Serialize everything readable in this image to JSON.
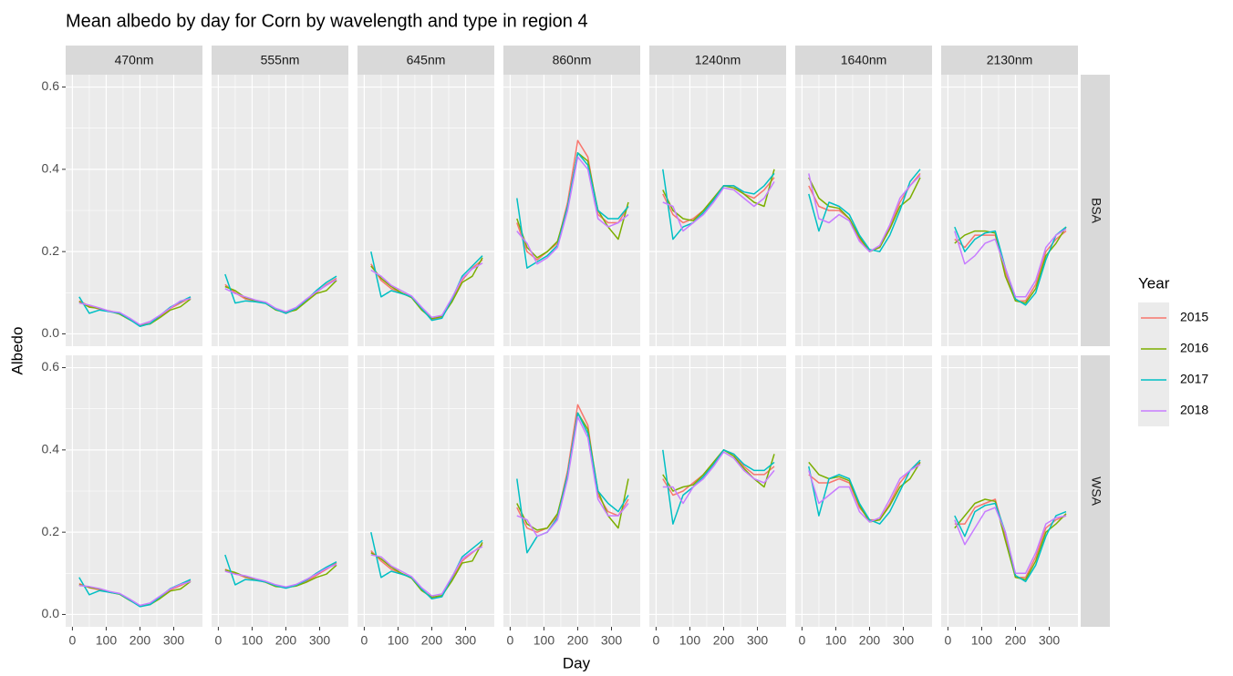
{
  "chart_data": {
    "type": "line",
    "title": "Mean albedo by day for Corn by wavelength and type in region 4",
    "x_label": "Day",
    "y_label": "Albedo",
    "columns": [
      "470nm",
      "555nm",
      "645nm",
      "860nm",
      "1240nm",
      "1640nm",
      "2130nm"
    ],
    "rows": [
      "BSA",
      "WSA"
    ],
    "legend_title": "Year",
    "legend_position": "right",
    "grid": true,
    "series": [
      {
        "name": "2015",
        "color": "#F8766D"
      },
      {
        "name": "2016",
        "color": "#7CAE00"
      },
      {
        "name": "2017",
        "color": "#00BFC4"
      },
      {
        "name": "2018",
        "color": "#C77CFF"
      }
    ],
    "x": [
      20,
      50,
      80,
      110,
      140,
      170,
      200,
      230,
      260,
      290,
      320,
      350
    ],
    "xlim": [
      -20,
      385
    ],
    "xticks": [
      0,
      100,
      200,
      300
    ],
    "ylim": [
      -0.03,
      0.63
    ],
    "yticks": [
      {
        "value": 0,
        "label": "0.0"
      },
      0.2,
      0.4,
      0.6
    ],
    "panels": [
      [
        [
          [
            0.08,
            0.068,
            0.06,
            0.056,
            0.05,
            0.036,
            0.02,
            0.026,
            0.042,
            0.062,
            0.075,
            0.088
          ],
          [
            0.078,
            0.065,
            0.062,
            0.055,
            0.048,
            0.034,
            0.021,
            0.024,
            0.04,
            0.058,
            0.066,
            0.085
          ],
          [
            0.09,
            0.05,
            0.058,
            0.054,
            0.05,
            0.035,
            0.018,
            0.025,
            0.045,
            0.065,
            0.078,
            0.09
          ],
          [
            0.075,
            0.07,
            0.063,
            0.055,
            0.052,
            0.038,
            0.022,
            0.03,
            0.046,
            0.063,
            0.08,
            0.086
          ]
        ],
        [
          [
            0.12,
            0.1,
            0.085,
            0.08,
            0.075,
            0.06,
            0.05,
            0.06,
            0.08,
            0.1,
            0.12,
            0.135
          ],
          [
            0.115,
            0.105,
            0.088,
            0.08,
            0.074,
            0.058,
            0.052,
            0.058,
            0.078,
            0.098,
            0.105,
            0.13
          ],
          [
            0.145,
            0.075,
            0.08,
            0.078,
            0.074,
            0.06,
            0.05,
            0.062,
            0.082,
            0.105,
            0.125,
            0.14
          ],
          [
            0.11,
            0.098,
            0.09,
            0.082,
            0.077,
            0.062,
            0.054,
            0.064,
            0.084,
            0.102,
            0.118,
            0.132
          ]
        ],
        [
          [
            0.17,
            0.13,
            0.11,
            0.1,
            0.09,
            0.06,
            0.035,
            0.04,
            0.08,
            0.13,
            0.16,
            0.18
          ],
          [
            0.165,
            0.135,
            0.115,
            0.1,
            0.088,
            0.058,
            0.037,
            0.042,
            0.078,
            0.125,
            0.14,
            0.185
          ],
          [
            0.2,
            0.09,
            0.105,
            0.098,
            0.09,
            0.062,
            0.033,
            0.038,
            0.085,
            0.14,
            0.165,
            0.19
          ],
          [
            0.155,
            0.14,
            0.118,
            0.105,
            0.092,
            0.065,
            0.04,
            0.045,
            0.088,
            0.135,
            0.158,
            0.172
          ]
        ],
        [
          [
            0.27,
            0.2,
            0.18,
            0.2,
            0.22,
            0.32,
            0.47,
            0.43,
            0.29,
            0.27,
            0.27,
            0.31
          ],
          [
            0.28,
            0.21,
            0.185,
            0.2,
            0.225,
            0.31,
            0.44,
            0.42,
            0.3,
            0.26,
            0.23,
            0.32
          ],
          [
            0.33,
            0.16,
            0.175,
            0.19,
            0.215,
            0.31,
            0.44,
            0.41,
            0.3,
            0.28,
            0.28,
            0.31
          ],
          [
            0.25,
            0.22,
            0.17,
            0.185,
            0.21,
            0.3,
            0.43,
            0.4,
            0.28,
            0.26,
            0.27,
            0.29
          ]
        ],
        [
          [
            0.34,
            0.29,
            0.27,
            0.28,
            0.3,
            0.33,
            0.36,
            0.36,
            0.34,
            0.33,
            0.35,
            0.38
          ],
          [
            0.35,
            0.3,
            0.28,
            0.275,
            0.3,
            0.33,
            0.36,
            0.355,
            0.34,
            0.32,
            0.31,
            0.4
          ],
          [
            0.4,
            0.23,
            0.26,
            0.27,
            0.295,
            0.325,
            0.36,
            0.36,
            0.345,
            0.34,
            0.36,
            0.39
          ],
          [
            0.32,
            0.31,
            0.25,
            0.27,
            0.29,
            0.32,
            0.355,
            0.35,
            0.33,
            0.31,
            0.33,
            0.37
          ]
        ],
        [
          [
            0.36,
            0.31,
            0.3,
            0.3,
            0.28,
            0.23,
            0.2,
            0.21,
            0.26,
            0.32,
            0.36,
            0.39
          ],
          [
            0.38,
            0.33,
            0.31,
            0.305,
            0.28,
            0.235,
            0.2,
            0.21,
            0.255,
            0.31,
            0.33,
            0.38
          ],
          [
            0.34,
            0.25,
            0.32,
            0.31,
            0.29,
            0.24,
            0.205,
            0.2,
            0.24,
            0.3,
            0.37,
            0.4
          ],
          [
            0.39,
            0.28,
            0.27,
            0.29,
            0.275,
            0.225,
            0.2,
            0.215,
            0.265,
            0.33,
            0.36,
            0.385
          ]
        ],
        [
          [
            0.23,
            0.21,
            0.24,
            0.24,
            0.24,
            0.15,
            0.08,
            0.08,
            0.12,
            0.2,
            0.23,
            0.25
          ],
          [
            0.22,
            0.24,
            0.25,
            0.25,
            0.245,
            0.14,
            0.08,
            0.075,
            0.11,
            0.19,
            0.22,
            0.26
          ],
          [
            0.26,
            0.2,
            0.23,
            0.245,
            0.25,
            0.16,
            0.085,
            0.07,
            0.1,
            0.18,
            0.24,
            0.26
          ],
          [
            0.25,
            0.17,
            0.19,
            0.22,
            0.23,
            0.16,
            0.09,
            0.09,
            0.13,
            0.21,
            0.24,
            0.255
          ]
        ]
      ],
      [
        [
          [
            0.075,
            0.065,
            0.06,
            0.055,
            0.05,
            0.035,
            0.02,
            0.025,
            0.04,
            0.06,
            0.07,
            0.082
          ],
          [
            0.072,
            0.066,
            0.062,
            0.054,
            0.049,
            0.034,
            0.021,
            0.024,
            0.039,
            0.057,
            0.062,
            0.08
          ],
          [
            0.09,
            0.048,
            0.058,
            0.054,
            0.05,
            0.035,
            0.019,
            0.024,
            0.043,
            0.063,
            0.074,
            0.085
          ],
          [
            0.07,
            0.068,
            0.063,
            0.056,
            0.051,
            0.037,
            0.022,
            0.028,
            0.045,
            0.062,
            0.073,
            0.08
          ]
        ],
        [
          [
            0.11,
            0.1,
            0.09,
            0.085,
            0.08,
            0.07,
            0.065,
            0.07,
            0.08,
            0.095,
            0.11,
            0.125
          ],
          [
            0.108,
            0.102,
            0.092,
            0.085,
            0.078,
            0.068,
            0.066,
            0.069,
            0.078,
            0.09,
            0.098,
            0.12
          ],
          [
            0.145,
            0.072,
            0.085,
            0.083,
            0.079,
            0.07,
            0.064,
            0.071,
            0.083,
            0.1,
            0.115,
            0.128
          ],
          [
            0.105,
            0.098,
            0.094,
            0.087,
            0.081,
            0.072,
            0.067,
            0.073,
            0.085,
            0.098,
            0.112,
            0.122
          ]
        ],
        [
          [
            0.155,
            0.13,
            0.11,
            0.1,
            0.09,
            0.06,
            0.04,
            0.045,
            0.085,
            0.13,
            0.15,
            0.17
          ],
          [
            0.15,
            0.135,
            0.115,
            0.1,
            0.088,
            0.058,
            0.042,
            0.046,
            0.082,
            0.125,
            0.13,
            0.175
          ],
          [
            0.2,
            0.09,
            0.105,
            0.098,
            0.09,
            0.062,
            0.038,
            0.043,
            0.09,
            0.14,
            0.16,
            0.18
          ],
          [
            0.145,
            0.14,
            0.118,
            0.105,
            0.092,
            0.065,
            0.045,
            0.05,
            0.092,
            0.135,
            0.152,
            0.165
          ]
        ],
        [
          [
            0.26,
            0.21,
            0.2,
            0.21,
            0.24,
            0.35,
            0.51,
            0.46,
            0.29,
            0.25,
            0.24,
            0.28
          ],
          [
            0.27,
            0.22,
            0.205,
            0.21,
            0.245,
            0.34,
            0.49,
            0.45,
            0.3,
            0.24,
            0.21,
            0.33
          ],
          [
            0.33,
            0.15,
            0.19,
            0.2,
            0.235,
            0.34,
            0.49,
            0.44,
            0.3,
            0.27,
            0.25,
            0.29
          ],
          [
            0.24,
            0.23,
            0.19,
            0.2,
            0.23,
            0.33,
            0.48,
            0.43,
            0.28,
            0.24,
            0.24,
            0.27
          ]
        ],
        [
          [
            0.33,
            0.29,
            0.3,
            0.32,
            0.34,
            0.37,
            0.4,
            0.39,
            0.36,
            0.34,
            0.34,
            0.36
          ],
          [
            0.34,
            0.3,
            0.31,
            0.315,
            0.34,
            0.37,
            0.4,
            0.385,
            0.355,
            0.33,
            0.31,
            0.39
          ],
          [
            0.4,
            0.22,
            0.29,
            0.31,
            0.335,
            0.365,
            0.4,
            0.39,
            0.365,
            0.35,
            0.35,
            0.37
          ],
          [
            0.31,
            0.31,
            0.27,
            0.31,
            0.33,
            0.36,
            0.395,
            0.38,
            0.35,
            0.33,
            0.32,
            0.35
          ]
        ],
        [
          [
            0.34,
            0.32,
            0.32,
            0.33,
            0.32,
            0.26,
            0.23,
            0.23,
            0.27,
            0.32,
            0.35,
            0.37
          ],
          [
            0.37,
            0.34,
            0.33,
            0.335,
            0.325,
            0.265,
            0.225,
            0.23,
            0.265,
            0.31,
            0.33,
            0.37
          ],
          [
            0.36,
            0.24,
            0.33,
            0.34,
            0.33,
            0.27,
            0.23,
            0.22,
            0.25,
            0.3,
            0.35,
            0.375
          ],
          [
            0.35,
            0.27,
            0.29,
            0.31,
            0.31,
            0.25,
            0.225,
            0.235,
            0.28,
            0.33,
            0.35,
            0.365
          ]
        ],
        [
          [
            0.22,
            0.22,
            0.26,
            0.27,
            0.28,
            0.19,
            0.09,
            0.09,
            0.14,
            0.21,
            0.23,
            0.24
          ],
          [
            0.21,
            0.24,
            0.27,
            0.28,
            0.275,
            0.18,
            0.09,
            0.085,
            0.13,
            0.2,
            0.22,
            0.245
          ],
          [
            0.24,
            0.19,
            0.25,
            0.265,
            0.27,
            0.2,
            0.095,
            0.08,
            0.12,
            0.19,
            0.24,
            0.25
          ],
          [
            0.23,
            0.17,
            0.21,
            0.25,
            0.26,
            0.2,
            0.1,
            0.1,
            0.15,
            0.22,
            0.235,
            0.24
          ]
        ]
      ]
    ]
  }
}
